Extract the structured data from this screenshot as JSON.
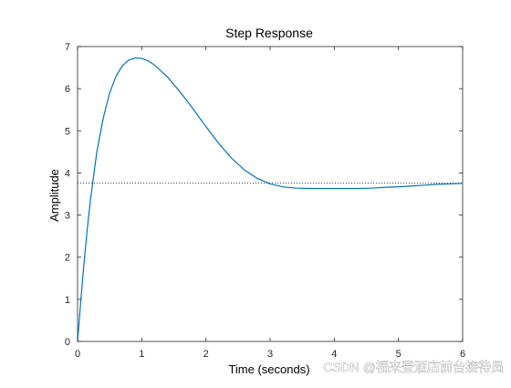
{
  "chart_data": {
    "type": "line",
    "title": "Step Response",
    "xlabel": "Time (seconds)",
    "ylabel": "Amplitude",
    "xlim": [
      0,
      6
    ],
    "ylim": [
      0,
      7
    ],
    "xticks": [
      0,
      1,
      2,
      3,
      4,
      5,
      6
    ],
    "yticks": [
      0,
      1,
      2,
      3,
      4,
      5,
      6,
      7
    ],
    "grid": false,
    "legend": "none",
    "series": [
      {
        "color": "#0072bd",
        "x": [
          0,
          0.05,
          0.1,
          0.15,
          0.2,
          0.3,
          0.4,
          0.5,
          0.6,
          0.7,
          0.8,
          0.9,
          1.0,
          1.1,
          1.2,
          1.4,
          1.6,
          1.8,
          2.0,
          2.2,
          2.4,
          2.6,
          2.8,
          3.0,
          3.2,
          3.4,
          3.6,
          3.8,
          4.0,
          4.2,
          4.4,
          4.6,
          4.8,
          5.0,
          5.2,
          5.4,
          5.6,
          5.8,
          6.0
        ],
        "y": [
          0,
          0.95,
          1.85,
          2.65,
          3.35,
          4.5,
          5.3,
          5.9,
          6.3,
          6.55,
          6.68,
          6.73,
          6.72,
          6.66,
          6.56,
          6.28,
          5.92,
          5.52,
          5.1,
          4.7,
          4.35,
          4.07,
          3.87,
          3.74,
          3.67,
          3.64,
          3.63,
          3.63,
          3.63,
          3.63,
          3.63,
          3.64,
          3.66,
          3.67,
          3.69,
          3.71,
          3.73,
          3.74,
          3.75
        ]
      }
    ],
    "reference_line": {
      "y": 3.76,
      "style": "dotted",
      "color": "#000000"
    }
  },
  "watermark": "CSDN @福来登酒店前台接待员"
}
